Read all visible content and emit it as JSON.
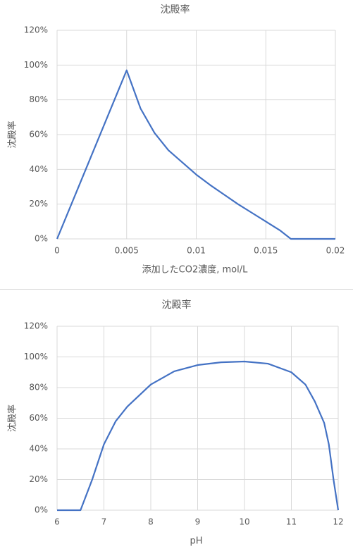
{
  "chart_data": [
    {
      "type": "line",
      "title": "沈殿率",
      "xlabel": "添加したCO2濃度, mol/L",
      "ylabel": "沈殿率",
      "x": [
        0,
        0.005,
        0.0055,
        0.006,
        0.007,
        0.008,
        0.009,
        0.01,
        0.011,
        0.012,
        0.013,
        0.014,
        0.015,
        0.016,
        0.0168,
        0.02
      ],
      "series": [
        {
          "name": "沈殿率",
          "color": "#4472c4",
          "values": [
            0,
            97,
            86,
            75,
            61,
            51,
            44,
            37,
            31,
            25.5,
            20,
            15,
            10,
            5,
            0,
            0
          ]
        }
      ],
      "xlim": [
        0,
        0.02
      ],
      "xticks": [
        0,
        0.005,
        0.01,
        0.015,
        0.02
      ],
      "ylim": [
        0,
        120
      ],
      "yticks": [
        {
          "value": 0,
          "label": "0%"
        },
        {
          "value": 20,
          "label": "20%"
        },
        {
          "value": 40,
          "label": "40%"
        },
        {
          "value": 60,
          "label": "60%"
        },
        {
          "value": 80,
          "label": "80%"
        },
        {
          "value": 100,
          "label": "100%"
        },
        {
          "value": 120,
          "label": "120%"
        }
      ],
      "grid": true
    },
    {
      "type": "line",
      "title": "沈殿率",
      "xlabel": "pH",
      "ylabel": "沈殿率",
      "x": [
        6,
        6.5,
        6.6,
        6.75,
        7,
        7.25,
        7.5,
        8,
        8.5,
        9,
        9.5,
        10,
        10.5,
        11,
        11.3,
        11.5,
        11.7,
        11.8,
        11.9,
        12
      ],
      "series": [
        {
          "name": "沈殿率",
          "color": "#4472c4",
          "values": [
            0,
            0,
            8,
            20,
            43,
            58,
            67.6,
            82,
            90.6,
            94.7,
            96.5,
            97,
            95.6,
            90,
            82,
            71,
            57,
            43,
            20,
            0
          ]
        }
      ],
      "xlim": [
        6,
        12
      ],
      "xticks": [
        6,
        7,
        8,
        9,
        10,
        11,
        12
      ],
      "ylim": [
        0,
        120
      ],
      "yticks": [
        {
          "value": 0,
          "label": "0%"
        },
        {
          "value": 20,
          "label": "20%"
        },
        {
          "value": 40,
          "label": "40%"
        },
        {
          "value": 60,
          "label": "60%"
        },
        {
          "value": 80,
          "label": "80%"
        },
        {
          "value": 100,
          "label": "100%"
        },
        {
          "value": 120,
          "label": "120%"
        }
      ],
      "grid": true
    }
  ]
}
